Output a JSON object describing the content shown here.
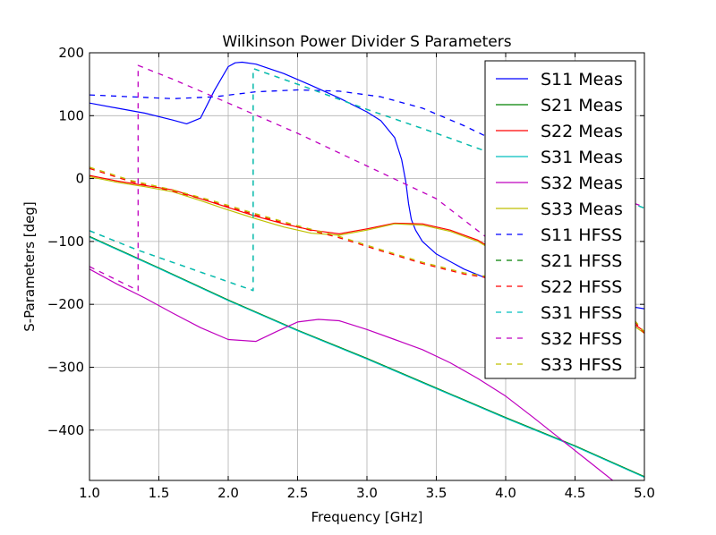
{
  "chart_data": {
    "type": "line",
    "title": "Wilkinson Power Divider S Parameters",
    "xlabel": "Frequency [GHz]",
    "ylabel": "S-Parameters [deg]",
    "xlim": [
      1.0,
      5.0
    ],
    "ylim": [
      -480,
      200
    ],
    "xticks": [
      "1.0",
      "1.5",
      "2.0",
      "2.5",
      "3.0",
      "3.5",
      "4.0",
      "4.5",
      "5.0"
    ],
    "yticks": [
      "200",
      "100",
      "0",
      "−100",
      "−200",
      "−300",
      "−400"
    ],
    "grid": true,
    "legend_position": "top-right",
    "colors": {
      "S11": "#0000ff",
      "S21": "#008000",
      "S22": "#ff0000",
      "S31": "#00bfbf",
      "S32": "#bf00bf",
      "S33": "#bfbf00"
    },
    "series": [
      {
        "name": "S11 Meas",
        "key": "S11",
        "style": "solid",
        "x": [
          1.0,
          1.2,
          1.4,
          1.6,
          1.7,
          1.8,
          1.9,
          2.0,
          2.05,
          2.1,
          2.2,
          2.4,
          2.6,
          2.8,
          3.0,
          3.1,
          3.2,
          3.25,
          3.28,
          3.3,
          3.32,
          3.35,
          3.4,
          3.5,
          3.7,
          3.9,
          4.2,
          4.5,
          4.8,
          5.0
        ],
        "y": [
          120,
          112,
          104,
          93,
          87,
          96,
          140,
          178,
          184,
          185,
          182,
          167,
          148,
          128,
          106,
          92,
          65,
          30,
          -5,
          -40,
          -65,
          -82,
          -100,
          -120,
          -144,
          -162,
          -178,
          -190,
          -200,
          -207
        ]
      },
      {
        "name": "S21 Meas",
        "key": "S21",
        "style": "solid",
        "x": [
          1.0,
          1.5,
          2.0,
          2.5,
          3.0,
          3.5,
          4.0,
          4.5,
          5.0
        ],
        "y": [
          -92,
          -142,
          -193,
          -241,
          -286,
          -333,
          -380,
          -425,
          -474
        ]
      },
      {
        "name": "S22 Meas",
        "key": "S22",
        "style": "solid",
        "x": [
          1.0,
          1.2,
          1.4,
          1.6,
          1.8,
          2.0,
          2.2,
          2.4,
          2.6,
          2.8,
          3.0,
          3.2,
          3.4,
          3.6,
          3.8,
          4.0,
          4.2,
          4.4,
          4.6,
          4.8,
          5.0
        ],
        "y": [
          5,
          -4,
          -11,
          -18,
          -32,
          -46,
          -60,
          -72,
          -82,
          -88,
          -80,
          -71,
          -72,
          -82,
          -98,
          -124,
          -150,
          -172,
          -190,
          -212,
          -243
        ]
      },
      {
        "name": "S31 Meas",
        "key": "S31",
        "style": "solid",
        "x": [
          1.0,
          1.5,
          2.0,
          2.5,
          3.0,
          3.5,
          4.0,
          4.5,
          5.0
        ],
        "y": [
          -93,
          -143,
          -194,
          -242,
          -287,
          -334,
          -381,
          -426,
          -475
        ]
      },
      {
        "name": "S32 Meas",
        "key": "S32",
        "style": "solid",
        "x": [
          1.0,
          1.2,
          1.4,
          1.6,
          1.8,
          2.0,
          2.2,
          2.35,
          2.5,
          2.65,
          2.8,
          3.0,
          3.2,
          3.4,
          3.6,
          3.8,
          4.0,
          4.2,
          4.4,
          4.6,
          4.8,
          5.0
        ],
        "y": [
          -144,
          -168,
          -190,
          -214,
          -237,
          -256,
          -259,
          -243,
          -228,
          -224,
          -226,
          -240,
          -256,
          -272,
          -293,
          -318,
          -346,
          -380,
          -415,
          -450,
          -485,
          -520
        ]
      },
      {
        "name": "S33 Meas",
        "key": "S33",
        "style": "solid",
        "x": [
          1.0,
          1.2,
          1.4,
          1.6,
          1.8,
          2.0,
          2.2,
          2.4,
          2.6,
          2.8,
          3.0,
          3.2,
          3.4,
          3.6,
          3.8,
          4.0,
          4.2,
          4.4,
          4.6,
          4.8,
          5.0
        ],
        "y": [
          3,
          -6,
          -13,
          -21,
          -35,
          -50,
          -64,
          -77,
          -87,
          -90,
          -82,
          -72,
          -74,
          -84,
          -100,
          -126,
          -152,
          -175,
          -193,
          -215,
          -246
        ]
      },
      {
        "name": "S11 HFSS",
        "key": "S11",
        "style": "dashed",
        "x": [
          1.0,
          1.3,
          1.6,
          1.9,
          2.2,
          2.5,
          2.8,
          3.1,
          3.4,
          3.7,
          4.0,
          4.3,
          4.6,
          4.9
        ],
        "y": [
          133,
          130,
          127,
          130,
          138,
          141,
          139,
          130,
          112,
          84,
          52,
          10,
          -52,
          -125
        ]
      },
      {
        "name": "S21 HFSS",
        "key": "S21",
        "style": "dashed",
        "x": [
          1.0,
          1.35,
          1.35,
          2.18,
          2.18,
          2.5,
          3.0,
          3.5,
          4.0,
          4.5,
          5.0
        ],
        "y": [
          -83,
          -114,
          -114,
          -178,
          175,
          150,
          110,
          72,
          32,
          -5,
          -47
        ]
      },
      {
        "name": "S22 HFSS",
        "key": "S22",
        "style": "dashed",
        "x": [
          1.0,
          1.3,
          1.6,
          1.9,
          2.2,
          2.5,
          2.8,
          3.1,
          3.4,
          3.7,
          4.0,
          4.3,
          4.6,
          4.9,
          5.0
        ],
        "y": [
          16,
          -5,
          -20,
          -38,
          -58,
          -77,
          -94,
          -115,
          -135,
          -152,
          -162,
          -172,
          -185,
          -220,
          -246
        ]
      },
      {
        "name": "S31 HFSS",
        "key": "S31",
        "style": "dashed",
        "x": [
          1.0,
          1.35,
          1.35,
          2.18,
          2.18,
          2.5,
          3.0,
          3.5,
          4.0,
          4.5,
          5.0
        ],
        "y": [
          -83,
          -114,
          -114,
          -178,
          175,
          150,
          110,
          72,
          32,
          -5,
          -47
        ]
      },
      {
        "name": "S32 HFSS",
        "key": "S32",
        "style": "dashed",
        "x": [
          1.0,
          1.35,
          1.35,
          1.6,
          2.0,
          2.5,
          3.0,
          3.5,
          3.9,
          4.2,
          4.5,
          4.8,
          5.0
        ],
        "y": [
          -140,
          -178,
          180,
          158,
          120,
          72,
          20,
          -32,
          -100,
          -135,
          -75,
          -30,
          -45
        ]
      },
      {
        "name": "S33 HFSS",
        "key": "S33",
        "style": "dashed",
        "x": [
          1.0,
          1.3,
          1.6,
          1.9,
          2.2,
          2.5,
          2.8,
          3.1,
          3.4,
          3.7,
          4.0,
          4.3,
          4.6,
          4.9,
          5.0
        ],
        "y": [
          18,
          -3,
          -18,
          -36,
          -56,
          -75,
          -92,
          -113,
          -133,
          -150,
          -160,
          -170,
          -183,
          -218,
          -244
        ]
      }
    ]
  }
}
